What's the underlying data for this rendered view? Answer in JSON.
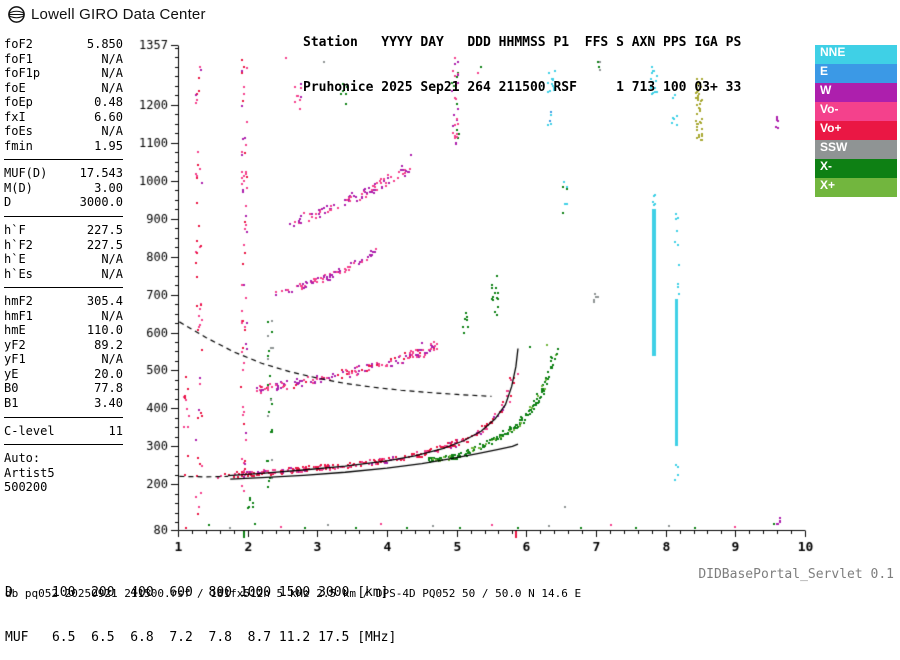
{
  "header": {
    "brand": "Lowell GIRO Data Center",
    "station_line1": "Station   YYYY DAY   DDD HHMMSS P1  FFS S AXN PPS IGA PS",
    "station_line2": "Pruhonice 2025 Sep21 264 211500 RSF     1 713 100 03+ 33"
  },
  "parameters": {
    "rows": [
      {
        "label": "foF2",
        "value": "5.850"
      },
      {
        "label": "foF1",
        "value": "N/A"
      },
      {
        "label": "foF1p",
        "value": "N/A"
      },
      {
        "label": "foE",
        "value": "N/A"
      },
      {
        "label": "foEp",
        "value": "0.48"
      },
      {
        "label": "fxI",
        "value": "6.60"
      },
      {
        "label": "foEs",
        "value": "N/A"
      },
      {
        "label": "fmin",
        "value": "1.95"
      },
      {
        "divider": true
      },
      {
        "label": "MUF(D)",
        "value": "17.543"
      },
      {
        "label": "M(D)",
        "value": "3.00"
      },
      {
        "label": "D",
        "value": "3000.0"
      },
      {
        "divider": true
      },
      {
        "label": "h`F",
        "value": "227.5"
      },
      {
        "label": "h`F2",
        "value": "227.5"
      },
      {
        "label": "h`E",
        "value": "N/A"
      },
      {
        "label": "h`Es",
        "value": "N/A"
      },
      {
        "divider": true
      },
      {
        "label": "hmF2",
        "value": "305.4"
      },
      {
        "label": "hmF1",
        "value": "N/A"
      },
      {
        "label": "hmE",
        "value": "110.0"
      },
      {
        "label": "yF2",
        "value": "89.2"
      },
      {
        "label": "yF1",
        "value": "N/A"
      },
      {
        "label": "yE",
        "value": "20.0"
      },
      {
        "label": "B0",
        "value": "77.8"
      },
      {
        "label": "B1",
        "value": "3.40"
      },
      {
        "divider": true
      },
      {
        "label": "C-level",
        "value": "11"
      },
      {
        "divider": true
      },
      {
        "label": "Auto:"
      },
      {
        "label": "Artist5"
      },
      {
        "label": "500200"
      }
    ]
  },
  "chart_data": {
    "type": "scatter",
    "description": "Digisonde ionogram: virtual height (km) vs frequency (MHz)",
    "x": {
      "min": 1,
      "max": 10,
      "major_ticks": [
        1,
        2,
        3,
        4,
        5,
        6,
        7,
        8,
        9,
        10
      ],
      "minor_step": 0.2,
      "unit": "MHz"
    },
    "y": {
      "min": 80,
      "max": 1357,
      "major_ticks": [
        80,
        200,
        300,
        400,
        500,
        600,
        700,
        800,
        900,
        1000,
        1100,
        1200,
        1357
      ],
      "minor_step": 25,
      "unit": "km"
    },
    "legend_items": [
      {
        "label": "NNE",
        "color": "#3fd0e6"
      },
      {
        "label": "E",
        "color": "#3b99e6"
      },
      {
        "label": "W",
        "color": "#ad1fad"
      },
      {
        "label": "Vo-",
        "color": "#f4418c"
      },
      {
        "label": "Vo+",
        "color": "#ea1744"
      },
      {
        "label": "SSW",
        "color": "#8f9494"
      },
      {
        "label": "X-",
        "color": "#0e8014"
      },
      {
        "label": "X+",
        "color": "#72b63e"
      }
    ],
    "extra_colors": {
      "INT": "#a8a832"
    },
    "axis_markers": [
      {
        "f": 1.95,
        "color": "#0e8014"
      },
      {
        "f": 5.85,
        "color": "#ea1744"
      }
    ],
    "lines": {
      "o_trace": [
        [
          1.72,
          223
        ],
        [
          2.2,
          229
        ],
        [
          2.8,
          238
        ],
        [
          3.4,
          248
        ],
        [
          4.0,
          262
        ],
        [
          4.4,
          275
        ],
        [
          4.8,
          294
        ],
        [
          5.1,
          315
        ],
        [
          5.35,
          340
        ],
        [
          5.55,
          372
        ],
        [
          5.7,
          410
        ],
        [
          5.79,
          458
        ],
        [
          5.85,
          510
        ],
        [
          5.88,
          558
        ]
      ],
      "profile": [
        [
          1.75,
          214
        ],
        [
          2.2,
          218
        ],
        [
          2.8,
          224
        ],
        [
          3.4,
          232
        ],
        [
          4.0,
          243
        ],
        [
          4.5,
          255
        ],
        [
          4.9,
          267
        ],
        [
          5.3,
          281
        ],
        [
          5.6,
          292
        ],
        [
          5.8,
          300
        ],
        [
          5.88,
          306
        ]
      ],
      "dashed_curve": [
        [
          1.02,
          628
        ],
        [
          1.4,
          587
        ],
        [
          1.8,
          549
        ],
        [
          2.2,
          519
        ],
        [
          2.6,
          497
        ],
        [
          3.0,
          480
        ],
        [
          3.4,
          466
        ],
        [
          3.8,
          456
        ],
        [
          4.2,
          448
        ],
        [
          4.6,
          442
        ],
        [
          5.0,
          437
        ],
        [
          5.3,
          434
        ],
        [
          5.5,
          432
        ]
      ],
      "dashed_flat": [
        [
          1.02,
          221
        ],
        [
          1.4,
          220
        ],
        [
          1.72,
          221
        ]
      ]
    },
    "echo_clusters": [
      {
        "kind": "trace",
        "path": [
          [
            1.75,
            224
          ],
          [
            2.2,
            230
          ],
          [
            2.8,
            239
          ],
          [
            3.4,
            249
          ],
          [
            4.0,
            263
          ],
          [
            4.4,
            276
          ],
          [
            4.8,
            295
          ],
          [
            5.1,
            316
          ],
          [
            5.35,
            341
          ],
          [
            5.55,
            373
          ],
          [
            5.7,
            411
          ],
          [
            5.79,
            459
          ],
          [
            5.85,
            511
          ],
          [
            5.88,
            556
          ]
        ],
        "n": 300,
        "jf": 0.05,
        "jh": 7,
        "mix": [
          [
            "Vo+",
            0.55
          ],
          [
            "Vo-",
            0.3
          ],
          [
            "W",
            0.15
          ]
        ]
      },
      {
        "kind": "trace",
        "path": [
          [
            2.15,
            447
          ],
          [
            2.6,
            463
          ],
          [
            3.0,
            478
          ],
          [
            3.4,
            493
          ],
          [
            3.8,
            509
          ],
          [
            4.2,
            528
          ],
          [
            4.55,
            551
          ],
          [
            4.75,
            569
          ]
        ],
        "n": 170,
        "jf": 0.06,
        "jh": 11,
        "mix": [
          [
            "Vo-",
            0.45
          ],
          [
            "W",
            0.4
          ],
          [
            "Vo+",
            0.15
          ]
        ]
      },
      {
        "kind": "trace",
        "path": [
          [
            2.45,
            699
          ],
          [
            2.8,
            722
          ],
          [
            3.1,
            744
          ],
          [
            3.4,
            768
          ],
          [
            3.7,
            796
          ],
          [
            3.85,
            813
          ]
        ],
        "n": 80,
        "jf": 0.05,
        "jh": 9,
        "mix": [
          [
            "Vo-",
            0.5
          ],
          [
            "W",
            0.5
          ]
        ]
      },
      {
        "kind": "trace",
        "path": [
          [
            2.65,
            889
          ],
          [
            3.0,
            913
          ],
          [
            3.35,
            941
          ],
          [
            3.7,
            969
          ],
          [
            4.05,
            1001
          ],
          [
            4.35,
            1041
          ]
        ],
        "n": 100,
        "jf": 0.06,
        "jh": 12,
        "mix": [
          [
            "W",
            0.5
          ],
          [
            "Vo-",
            0.5
          ]
        ]
      },
      {
        "kind": "trace",
        "path": [
          [
            4.6,
            263
          ],
          [
            5.0,
            273
          ],
          [
            5.3,
            293
          ],
          [
            5.6,
            323
          ],
          [
            5.9,
            361
          ],
          [
            6.1,
            403
          ],
          [
            6.25,
            453
          ],
          [
            6.35,
            506
          ],
          [
            6.42,
            558
          ]
        ],
        "n": 190,
        "jf": 0.04,
        "jh": 7,
        "mix": [
          [
            "X-",
            0.75
          ],
          [
            "X+",
            0.25
          ]
        ]
      },
      {
        "kind": "column",
        "f": 5.55,
        "h1": 630,
        "h2": 770,
        "n": 14,
        "jf": 0.05,
        "mix": [
          [
            "X-",
            1
          ]
        ]
      },
      {
        "kind": "column",
        "f": 5.12,
        "h1": 595,
        "h2": 652,
        "n": 7,
        "jf": 0.04,
        "mix": [
          [
            "X-",
            1
          ]
        ]
      },
      {
        "kind": "bar",
        "f": 7.83,
        "h1": 536,
        "h2": 924,
        "w": 4,
        "color": "NNE"
      },
      {
        "kind": "bar",
        "f": 8.15,
        "h1": 300,
        "h2": 688,
        "w": 3,
        "color": "NNE"
      },
      {
        "kind": "column",
        "f": 7.83,
        "h1": 930,
        "h2": 968,
        "n": 7,
        "jf": 0.02,
        "mix": [
          [
            "NNE",
            1
          ]
        ]
      },
      {
        "kind": "column",
        "f": 7.84,
        "h1": 1222,
        "h2": 1306,
        "n": 16,
        "jf": 0.05,
        "mix": [
          [
            "NNE",
            1
          ]
        ]
      },
      {
        "kind": "column",
        "f": 6.36,
        "h1": 1232,
        "h2": 1292,
        "n": 12,
        "jf": 0.05,
        "mix": [
          [
            "NNE",
            1
          ]
        ]
      },
      {
        "kind": "column",
        "f": 6.33,
        "h1": 1128,
        "h2": 1180,
        "n": 5,
        "jf": 0.03,
        "mix": [
          [
            "NNE",
            0.6
          ],
          [
            "E",
            0.4
          ]
        ]
      },
      {
        "kind": "column",
        "f": 8.16,
        "h1": 700,
        "h2": 958,
        "n": 10,
        "jf": 0.03,
        "mix": [
          [
            "NNE",
            1
          ]
        ]
      },
      {
        "kind": "column",
        "f": 8.13,
        "h1": 1146,
        "h2": 1252,
        "n": 7,
        "jf": 0.04,
        "mix": [
          [
            "NNE",
            1
          ]
        ]
      },
      {
        "kind": "column",
        "f": 8.17,
        "h1": 196,
        "h2": 292,
        "n": 5,
        "jf": 0.03,
        "mix": [
          [
            "NNE",
            1
          ]
        ]
      },
      {
        "kind": "column",
        "f": 8.48,
        "h1": 1104,
        "h2": 1272,
        "n": 44,
        "jf": 0.05,
        "mix": [
          [
            "INT",
            1
          ]
        ]
      },
      {
        "kind": "column",
        "f": 9.62,
        "h1": 94,
        "h2": 114,
        "n": 5,
        "jf": 0.03,
        "mix": [
          [
            "W",
            1
          ]
        ]
      },
      {
        "kind": "column",
        "f": 9.6,
        "h1": 1126,
        "h2": 1168,
        "n": 6,
        "jf": 0.03,
        "mix": [
          [
            "W",
            1
          ]
        ]
      },
      {
        "kind": "column",
        "f": 1.95,
        "h1": 150,
        "h2": 1340,
        "n": 70,
        "jf": 0.04,
        "mix": [
          [
            "Vo-",
            0.5
          ],
          [
            "Vo+",
            0.3
          ],
          [
            "W",
            0.2
          ]
        ]
      },
      {
        "kind": "column",
        "f": 1.3,
        "h1": 95,
        "h2": 1330,
        "n": 48,
        "jf": 0.05,
        "mix": [
          [
            "Vo-",
            0.45
          ],
          [
            "Vo+",
            0.45
          ],
          [
            "W",
            0.1
          ]
        ]
      },
      {
        "kind": "column",
        "f": 1.12,
        "h1": 90,
        "h2": 520,
        "n": 12,
        "jf": 0.04,
        "mix": [
          [
            "Vo+",
            0.6
          ],
          [
            "Vo-",
            0.4
          ]
        ]
      },
      {
        "kind": "column",
        "f": 2.32,
        "h1": 190,
        "h2": 640,
        "n": 26,
        "jf": 0.04,
        "mix": [
          [
            "X-",
            0.6
          ],
          [
            "SSW",
            0.4
          ]
        ]
      },
      {
        "kind": "column",
        "f": 4.98,
        "h1": 1090,
        "h2": 1328,
        "n": 34,
        "jf": 0.05,
        "mix": [
          [
            "Vo-",
            0.4
          ],
          [
            "X-",
            0.35
          ],
          [
            "W",
            0.25
          ]
        ]
      },
      {
        "kind": "column",
        "f": 6.55,
        "h1": 905,
        "h2": 1008,
        "n": 7,
        "jf": 0.04,
        "mix": [
          [
            "X-",
            0.6
          ],
          [
            "NNE",
            0.4
          ]
        ]
      },
      {
        "kind": "column",
        "f": 7.0,
        "h1": 676,
        "h2": 712,
        "n": 5,
        "jf": 0.04,
        "mix": [
          [
            "SSW",
            1
          ]
        ]
      },
      {
        "kind": "column",
        "f": 7.02,
        "h1": 1288,
        "h2": 1322,
        "n": 4,
        "jf": 0.05,
        "mix": [
          [
            "SSW",
            0.5
          ],
          [
            "X-",
            0.5
          ]
        ]
      },
      {
        "kind": "column",
        "f": 2.05,
        "h1": 138,
        "h2": 170,
        "n": 6,
        "jf": 0.05,
        "mix": [
          [
            "X-",
            1
          ]
        ]
      },
      {
        "kind": "column",
        "f": 3.38,
        "h1": 1196,
        "h2": 1262,
        "n": 8,
        "jf": 0.05,
        "mix": [
          [
            "X-",
            0.7
          ],
          [
            "SSW",
            0.3
          ]
        ]
      },
      {
        "kind": "column",
        "f": 2.72,
        "h1": 1180,
        "h2": 1262,
        "n": 9,
        "jf": 0.06,
        "mix": [
          [
            "Vo-",
            0.7
          ],
          [
            "W",
            0.3
          ]
        ]
      },
      {
        "kind": "points",
        "pts": [
          [
            1.62,
            221,
            "Vo-"
          ],
          [
            1.68,
            227,
            "Vo+"
          ],
          [
            1.58,
            216,
            "Vo-"
          ],
          [
            5.3,
            1282,
            "Vo-"
          ],
          [
            5.35,
            1300,
            "X-"
          ],
          [
            4.35,
            1068,
            "W"
          ],
          [
            4.5,
            572,
            "W"
          ],
          [
            6.05,
            562,
            "X-"
          ],
          [
            6.3,
            568,
            "X+"
          ],
          [
            2.55,
            1322,
            "Vo-"
          ],
          [
            3.1,
            1312,
            "SSW"
          ],
          [
            6.55,
            140,
            "SSW"
          ],
          [
            1.28,
            123,
            "Vo+"
          ]
        ]
      },
      {
        "kind": "points",
        "pts": [
          [
            1.12,
            86,
            "Vo+"
          ],
          [
            1.45,
            92,
            "X-"
          ],
          [
            1.75,
            84,
            "SSW"
          ],
          [
            2.1,
            95,
            "X-"
          ],
          [
            2.48,
            88,
            "Vo-"
          ],
          [
            2.82,
            84,
            "X-"
          ],
          [
            3.15,
            93,
            "SSW"
          ],
          [
            3.55,
            86,
            "X-"
          ],
          [
            3.92,
            96,
            "Vo-"
          ],
          [
            4.28,
            84,
            "X-"
          ],
          [
            4.66,
            91,
            "SSW"
          ],
          [
            5.05,
            86,
            "X-"
          ],
          [
            5.5,
            94,
            "Vo-"
          ],
          [
            5.88,
            85,
            "X-"
          ],
          [
            6.32,
            91,
            "SSW"
          ],
          [
            6.78,
            84,
            "X-"
          ],
          [
            7.22,
            93,
            "Vo-"
          ],
          [
            7.58,
            86,
            "X-"
          ],
          [
            8.05,
            90,
            "SSW"
          ],
          [
            8.42,
            84,
            "X-"
          ],
          [
            9.0,
            89,
            "Vo-"
          ],
          [
            9.55,
            96,
            "X-"
          ]
        ]
      }
    ],
    "muf_table": {
      "D_km": [
        100,
        200,
        400,
        600,
        800,
        1000,
        1500,
        3000
      ],
      "MUF_MHz": [
        6.5,
        6.5,
        6.8,
        7.2,
        7.8,
        8.7,
        11.2,
        17.5
      ]
    }
  },
  "footer": {
    "d_row": "D     100  200  400  600  800 1000 1500 3000 [km]",
    "muf_row": "MUF   6.5  6.5  6.8  7.2  7.8  8.7 11.2 17.5 [MHz]",
    "db_line": "db pq052 20250921 211500.rsf / 181fx512h 5 kHz 2.5 km / DPS-4D PQ052 50 / 50.0 N 14.6 E",
    "servlet": "DIDBasePortal_Servlet 0.1"
  }
}
